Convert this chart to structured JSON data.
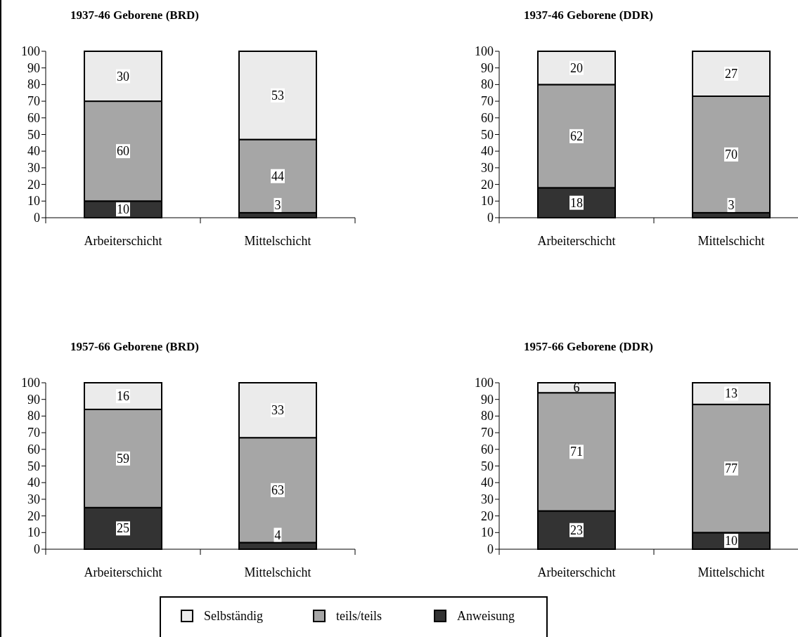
{
  "chart_data": [
    {
      "type": "bar",
      "title": "1937-46 Geborene (BRD)",
      "categories": [
        "Arbeiterschicht",
        "Mittelschicht"
      ],
      "stacked": true,
      "data_labels": true,
      "ylim": [
        0,
        100
      ],
      "yticks": [
        0,
        10,
        20,
        30,
        40,
        50,
        60,
        70,
        80,
        90,
        100
      ],
      "grid": false,
      "series": [
        {
          "color": "#333333",
          "values": [
            10,
            3
          ]
        },
        {
          "color": "#a6a6a6",
          "values": [
            60,
            44
          ]
        },
        {
          "color": "#ebebeb",
          "values": [
            30,
            53
          ]
        }
      ]
    },
    {
      "type": "bar",
      "title": "1937-46 Geborene (DDR)",
      "categories": [
        "Arbeiterschicht",
        "Mittelschicht"
      ],
      "stacked": true,
      "data_labels": true,
      "ylim": [
        0,
        100
      ],
      "yticks": [
        0,
        10,
        20,
        30,
        40,
        50,
        60,
        70,
        80,
        90,
        100
      ],
      "grid": false,
      "series": [
        {
          "color": "#333333",
          "values": [
            18,
            3
          ]
        },
        {
          "color": "#a6a6a6",
          "values": [
            62,
            70
          ]
        },
        {
          "color": "#ebebeb",
          "values": [
            20,
            27
          ]
        }
      ]
    },
    {
      "type": "bar",
      "title": "1957-66 Geborene (BRD)",
      "categories": [
        "Arbeiterschicht",
        "Mittelschicht"
      ],
      "stacked": true,
      "data_labels": true,
      "ylim": [
        0,
        100
      ],
      "yticks": [
        0,
        10,
        20,
        30,
        40,
        50,
        60,
        70,
        80,
        90,
        100
      ],
      "grid": false,
      "series": [
        {
          "color": "#333333",
          "values": [
            25,
            4
          ]
        },
        {
          "color": "#a6a6a6",
          "values": [
            59,
            63
          ]
        },
        {
          "color": "#ebebeb",
          "values": [
            16,
            33
          ]
        }
      ]
    },
    {
      "type": "bar",
      "title": "1957-66 Geborene (DDR)",
      "categories": [
        "Arbeiterschicht",
        "Mittelschicht"
      ],
      "stacked": true,
      "data_labels": true,
      "ylim": [
        0,
        100
      ],
      "yticks": [
        0,
        10,
        20,
        30,
        40,
        50,
        60,
        70,
        80,
        90,
        100
      ],
      "grid": false,
      "legend": "bottom",
      "series": [
        {
          "name": "Anweisung",
          "color": "#333333",
          "values": [
            23,
            10
          ]
        },
        {
          "name": "teils/teils",
          "color": "#a6a6a6",
          "values": [
            71,
            77
          ]
        },
        {
          "name": "Selbständig",
          "color": "#ebebeb",
          "values": [
            6,
            13
          ]
        }
      ]
    }
  ]
}
